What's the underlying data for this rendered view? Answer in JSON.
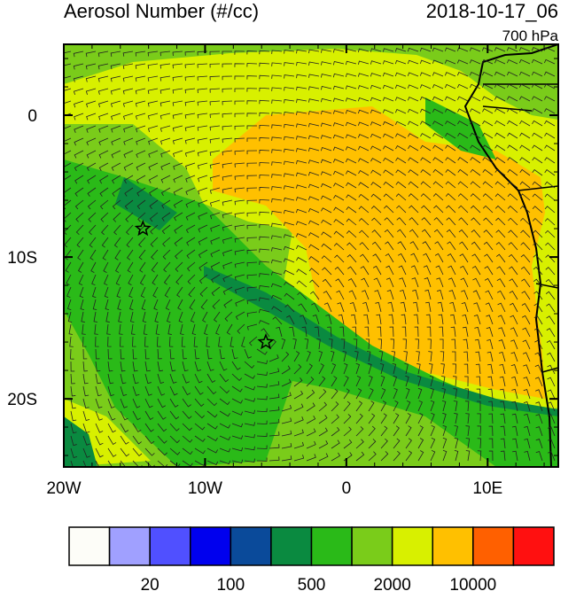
{
  "title": "Aerosol Number (#/cc)",
  "date": "2018-10-17_06",
  "level": "700 hPa",
  "map": {
    "lon_range": [
      -20,
      15
    ],
    "lat_range": [
      -24.8,
      5
    ],
    "lon_ticks": [
      {
        "value": -20,
        "label": "20W"
      },
      {
        "value": -10,
        "label": "10W"
      },
      {
        "value": 0,
        "label": "0"
      },
      {
        "value": 10,
        "label": "10E"
      }
    ],
    "lat_ticks": [
      {
        "value": 0,
        "label": "0"
      },
      {
        "value": -10,
        "label": "10S"
      },
      {
        "value": -20,
        "label": "20S"
      }
    ],
    "markers": [
      {
        "lon": -14.4,
        "lat": -8
      },
      {
        "lon": -5.7,
        "lat": -16
      }
    ]
  },
  "colorbar": {
    "colors": [
      "#fdfdf8",
      "#a0a0ff",
      "#5050ff",
      "#0000ee",
      "#0a4a9a",
      "#0a8a40",
      "#2aba18",
      "#7acc1a",
      "#d8f000",
      "#ffc000",
      "#ff6000",
      "#ff1010"
    ],
    "labels": [
      {
        "boundary": 2,
        "label": "20"
      },
      {
        "boundary": 4,
        "label": "100"
      },
      {
        "boundary": 6,
        "label": "500"
      },
      {
        "boundary": 8,
        "label": "2000"
      },
      {
        "boundary": 10,
        "label": "10000"
      }
    ]
  }
}
